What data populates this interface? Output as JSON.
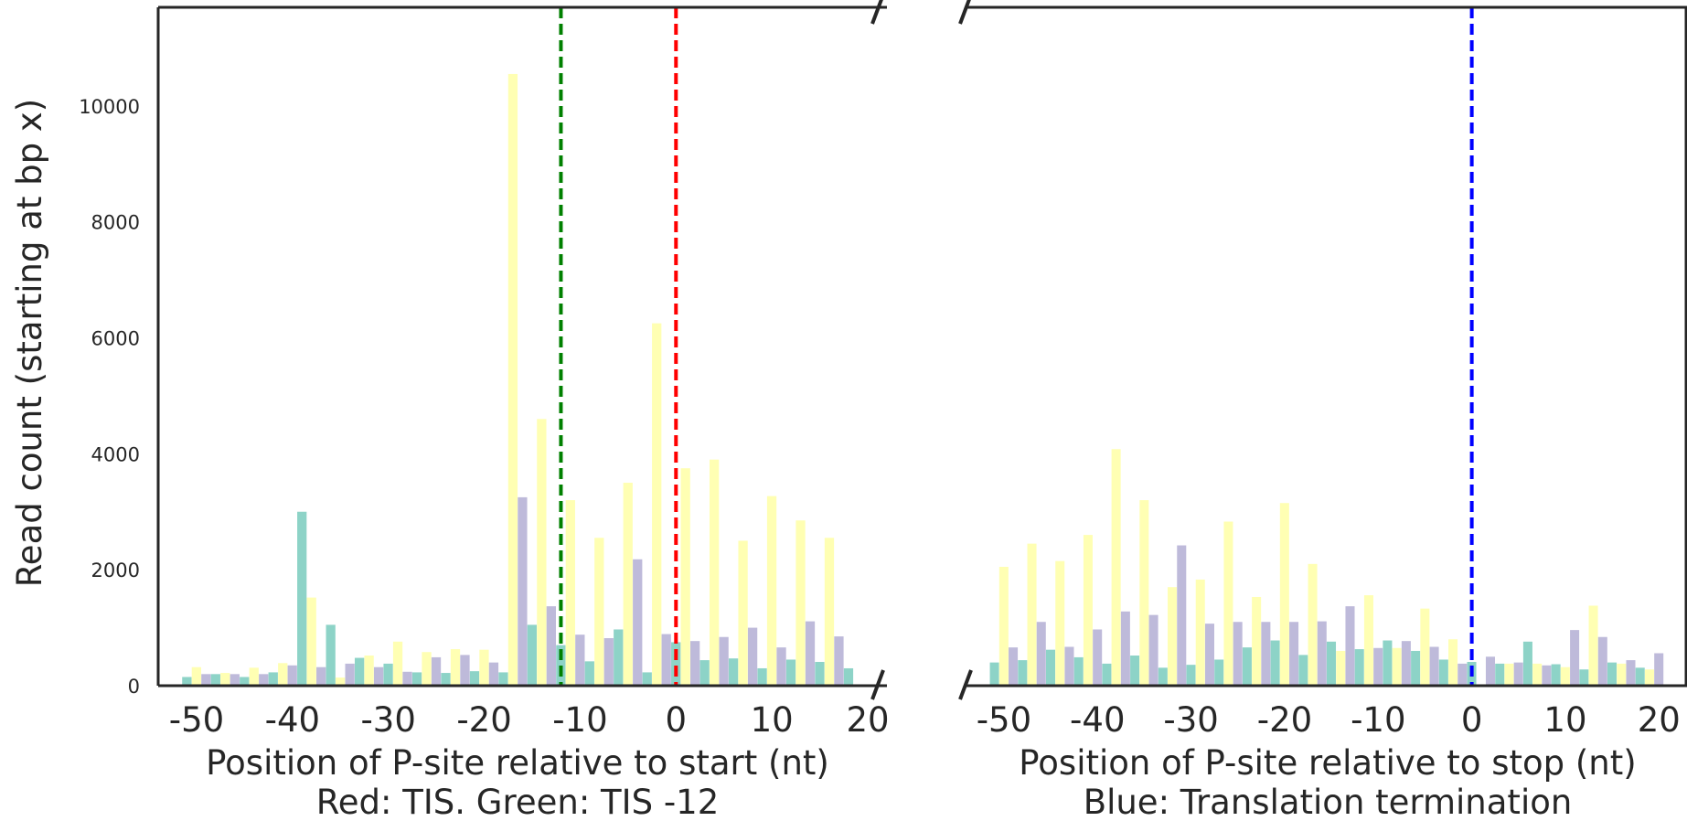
{
  "chart_data": [
    {
      "type": "bar",
      "panel": "start",
      "xlabel": "Position of P-site relative to start (nt)",
      "xlabel2": "Red: TIS. Green: TIS -12",
      "ylabel": "Read count (starting at bp x)",
      "xlim": [
        -54,
        22
      ],
      "ylim": [
        0,
        11700
      ],
      "x_ticks": [
        -50,
        -40,
        -30,
        -20,
        -10,
        0,
        10,
        20
      ],
      "x_tick_labels": [
        "-50",
        "-40",
        "-30",
        "-20",
        "-10",
        "0",
        "10",
        "20"
      ],
      "y_ticks": [
        0,
        2000,
        4000,
        6000,
        8000,
        10000
      ],
      "y_tick_labels": [
        "0",
        "2000",
        "4000",
        "6000",
        "8000",
        "10000"
      ],
      "x": [
        -51,
        -48,
        -45,
        -42,
        -39,
        -36,
        -33,
        -30,
        -27,
        -24,
        -21,
        -18,
        -15,
        -12,
        -9,
        -6,
        -3,
        0,
        3,
        6,
        9,
        12,
        15,
        18
      ],
      "series": [
        {
          "color": "#8dd3c7",
          "values": [
            150,
            200,
            150,
            230,
            3000,
            1050,
            480,
            380,
            230,
            220,
            250,
            230,
            1050,
            700,
            420,
            970,
            230,
            750,
            440,
            470,
            300,
            450,
            410,
            300
          ]
        },
        {
          "color": "#ffffb3",
          "values": [
            320,
            220,
            310,
            390,
            1520,
            140,
            520,
            760,
            580,
            630,
            620,
            10550,
            4600,
            3200,
            2550,
            3500,
            6250,
            3750,
            3900,
            2500,
            3270,
            2850,
            2550,
            0
          ]
        },
        {
          "color": "#bebada",
          "values": [
            200,
            200,
            200,
            350,
            320,
            380,
            320,
            240,
            490,
            530,
            400,
            3250,
            1370,
            880,
            820,
            2180,
            890,
            770,
            840,
            1000,
            660,
            1110,
            850,
            0
          ]
        }
      ],
      "vlines": [
        {
          "x": 0,
          "color": "#ff0000"
        },
        {
          "x": -12,
          "color": "#008000"
        }
      ]
    },
    {
      "type": "bar",
      "panel": "stop",
      "xlabel": "Position of P-site relative to stop (nt)",
      "xlabel2": "Blue: Translation termination",
      "xlim": [
        -54,
        23
      ],
      "ylim": [
        0,
        11700
      ],
      "x_ticks": [
        -50,
        -40,
        -30,
        -20,
        -10,
        0,
        10,
        20
      ],
      "x_tick_labels": [
        "-50",
        "-40",
        "-30",
        "-20",
        "-10",
        "0",
        "10",
        "20"
      ],
      "x": [
        -51,
        -48,
        -45,
        -42,
        -39,
        -36,
        -33,
        -30,
        -27,
        -24,
        -21,
        -18,
        -15,
        -12,
        -9,
        -6,
        -3,
        0,
        3,
        6,
        9,
        12,
        15,
        18
      ],
      "series": [
        {
          "color": "#8dd3c7",
          "values": [
            400,
            440,
            620,
            490,
            380,
            520,
            310,
            360,
            450,
            660,
            780,
            530,
            760,
            630,
            780,
            600,
            450,
            410,
            380,
            760,
            370,
            280,
            400,
            310
          ]
        },
        {
          "color": "#ffffb3",
          "values": [
            2050,
            2450,
            2150,
            2600,
            4080,
            3200,
            1700,
            1830,
            2830,
            1530,
            3150,
            2100,
            600,
            1560,
            650,
            1330,
            800,
            0,
            380,
            380,
            320,
            1380,
            380,
            280
          ]
        },
        {
          "color": "#bebada",
          "values": [
            660,
            1100,
            670,
            970,
            1280,
            1220,
            2420,
            1070,
            1100,
            1100,
            1100,
            1110,
            1370,
            650,
            770,
            670,
            380,
            500,
            400,
            350,
            960,
            840,
            440,
            560
          ]
        }
      ],
      "vlines": [
        {
          "x": 0,
          "color": "#0000ff"
        }
      ]
    }
  ]
}
